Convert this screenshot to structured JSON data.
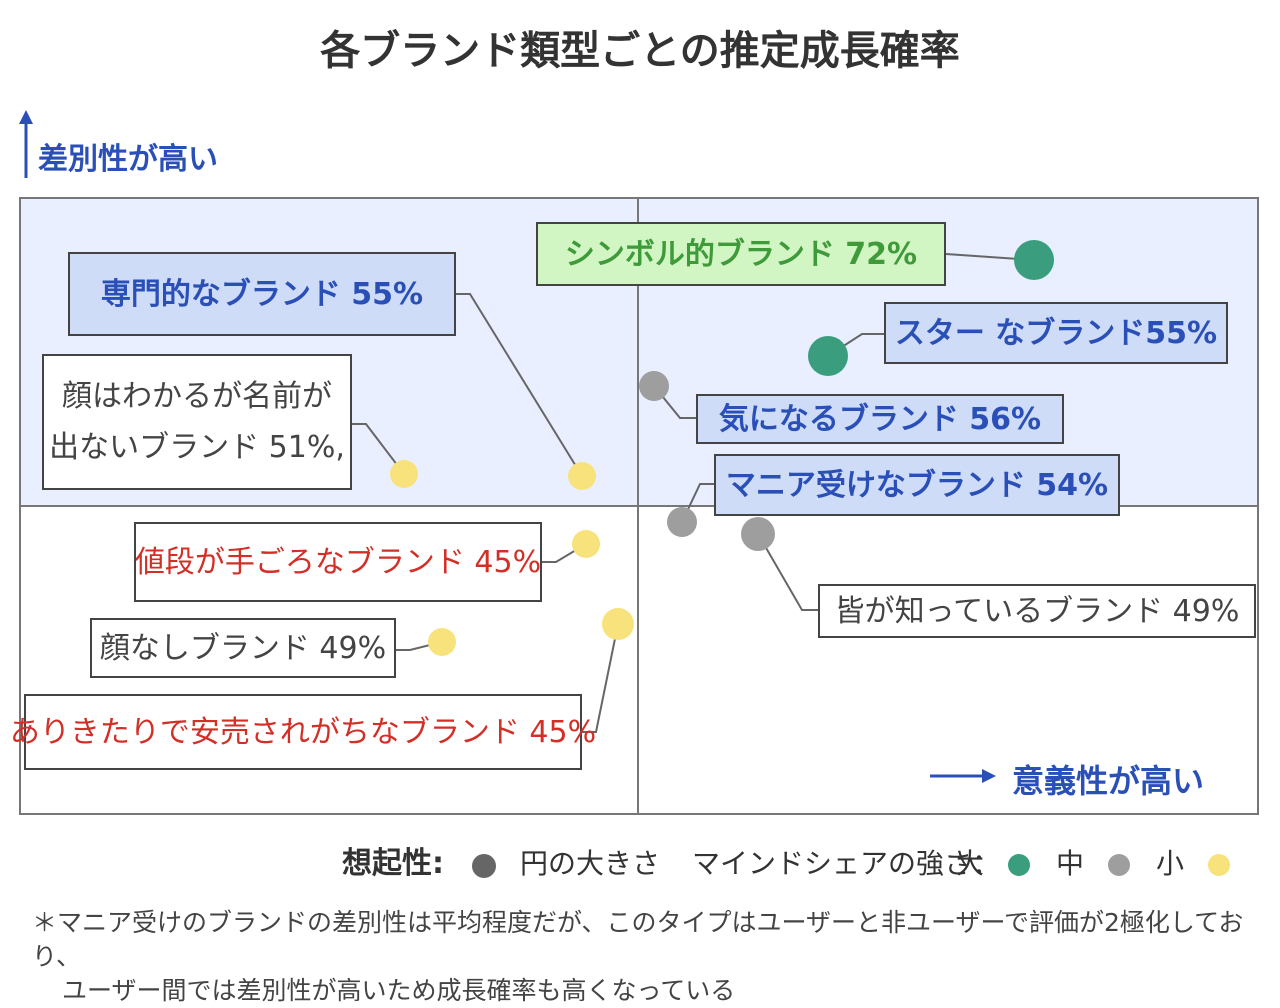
{
  "title": "各ブランド類型ごとの推定成長確率",
  "axes": {
    "y_label": "差別性が高い",
    "x_label": "意義性が高い"
  },
  "colors": {
    "large": "#3a9e7e",
    "medium": "#9e9e9e",
    "small": "#f7e27b",
    "bg_top": "#e9efff"
  },
  "chart_data": {
    "type": "scatter",
    "xlabel": "意義性が高い",
    "ylabel": "差別性が高い",
    "legend_title": "想起性:",
    "size_legend": "円の大きさ",
    "mindshare_legend": "マインドシェアの強さ：",
    "points": [
      {
        "name": "シンボル的ブランド",
        "value": "72%",
        "size": "大",
        "style": "green"
      },
      {
        "name": "スター なブランド",
        "value": "55%",
        "size": "大",
        "style": "blue"
      },
      {
        "name": "専門的なブランド",
        "value": "55%",
        "size": "小",
        "style": "blue"
      },
      {
        "name": "気になるブランド",
        "value": "56%",
        "size": "中",
        "style": "blue"
      },
      {
        "name": "マニア受けなブランド",
        "value": "54%",
        "size": "中",
        "style": "blue"
      },
      {
        "name": "皆が知っているブランド",
        "value": "49%",
        "size": "中",
        "style": "gray"
      },
      {
        "name": "顔はわかるが名前が出ないブランド",
        "value": "51%,",
        "size": "小",
        "style": "gray"
      },
      {
        "name": "値段が手ごろなブランド",
        "value": "45%",
        "size": "小",
        "style": "red"
      },
      {
        "name": "顔なしブランド",
        "value": "49%",
        "size": "小",
        "style": "gray"
      },
      {
        "name": "ありきたりで安売されがちなブランド",
        "value": "45%",
        "size": "小",
        "style": "red"
      }
    ]
  },
  "labels": [
    "シンボル的ブランド 72%",
    "スター なブランド55%",
    "専門的なブランド 55%",
    "気になるブランド 56%",
    "マニア受けなブランド 54%",
    "皆が知っているブランド 49%",
    "顔はわかるが名前が",
    "出ないブランド 51%,",
    "値段が手ごろなブランド 45%",
    "顔なしブランド 49%",
    "ありきたりで安売されがちなブランド 45%"
  ],
  "legend": {
    "title": "想起性:",
    "size_text": "円の大きさ",
    "share_text": "マインドシェアの強さ：",
    "large": "大",
    "medium": "中",
    "small": "小"
  },
  "note": {
    "line1": "＊マニア受けのブランドの差別性は平均程度だが、このタイプはユーザーと非ユーザーで評価が2極化しており、",
    "line2": "ユーザー間では差別性が高いため成長確率も高くなっている"
  }
}
